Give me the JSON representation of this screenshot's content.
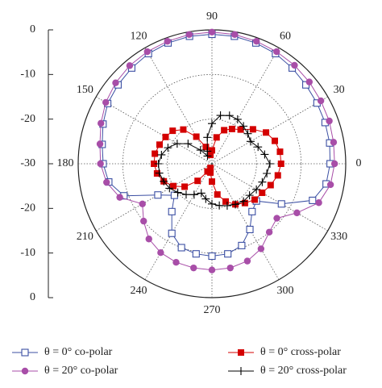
{
  "chart_data": {
    "type": "polar",
    "rlim": [
      -30,
      0
    ],
    "rticks": [
      -30,
      -20,
      -10,
      0
    ],
    "thetaticks": [
      0,
      30,
      60,
      90,
      120,
      150,
      180,
      210,
      240,
      270,
      300,
      330
    ],
    "theta": [
      0,
      10,
      20,
      30,
      40,
      50,
      60,
      70,
      80,
      90,
      100,
      110,
      120,
      130,
      140,
      150,
      160,
      170,
      180,
      190,
      200,
      210,
      220,
      230,
      240,
      250,
      260,
      270,
      280,
      290,
      300,
      310,
      320,
      330,
      340,
      350
    ],
    "grid": true,
    "series": [
      {
        "name": "θ = 0° co-polar",
        "color": "#3b4fa3",
        "marker": "open-square",
        "values": [
          -3.5,
          -3.2,
          -3,
          -2.8,
          -2.5,
          -2,
          -1.5,
          -1.2,
          -1,
          -1,
          -1,
          -1.2,
          -1.5,
          -2,
          -2.5,
          -3,
          -4,
          -5,
          -5.6,
          -6.5,
          -9,
          -16,
          -19,
          -16,
          -12,
          -10,
          -9.5,
          -9.3,
          -9.5,
          -10.5,
          -13,
          -16,
          -17,
          -12,
          -6,
          -4
        ]
      },
      {
        "name": "θ = 20° co-polar",
        "color": "#a84ea8",
        "marker": "circle",
        "values": [
          -2.5,
          -2.3,
          -2,
          -1.8,
          -1.5,
          -1.2,
          -1,
          -0.8,
          -0.6,
          -0.5,
          -0.6,
          -0.8,
          -1,
          -1.3,
          -1.8,
          -2.5,
          -3.5,
          -4.5,
          -5,
          -6,
          -8,
          -12,
          -10,
          -8,
          -7,
          -6.5,
          -6.3,
          -6.2,
          -6.3,
          -6.8,
          -8,
          -10,
          -11,
          -8,
          -4.5,
          -3
        ]
      },
      {
        "name": "θ = 0° cross-polar",
        "color": "#d40000",
        "marker": "square",
        "values": [
          -14.5,
          -14.5,
          -15,
          -16,
          -18,
          -20,
          -21,
          -22,
          -24,
          -27,
          -28,
          -26,
          -23,
          -20,
          -18.5,
          -18,
          -17.5,
          -17,
          -17,
          -17.5,
          -18.5,
          -20,
          -22,
          -25,
          -28,
          -29,
          -28,
          -26,
          -23,
          -21,
          -19.5,
          -18.5,
          -17.5,
          -17,
          -16,
          -15
        ]
      },
      {
        "name": "θ = 20° cross-polar",
        "color": "#000000",
        "marker": "plus",
        "values": [
          -17,
          -18,
          -19,
          -20,
          -19.5,
          -19,
          -18.5,
          -18.5,
          -19,
          -21,
          -24,
          -27,
          -28,
          -26,
          -23,
          -21,
          -19.5,
          -18.5,
          -18,
          -18,
          -18.5,
          -19,
          -20,
          -21,
          -22,
          -23,
          -22,
          -21,
          -20.5,
          -20,
          -19.5,
          -19,
          -19,
          -18.5,
          -18,
          -17.5
        ]
      }
    ]
  }
}
